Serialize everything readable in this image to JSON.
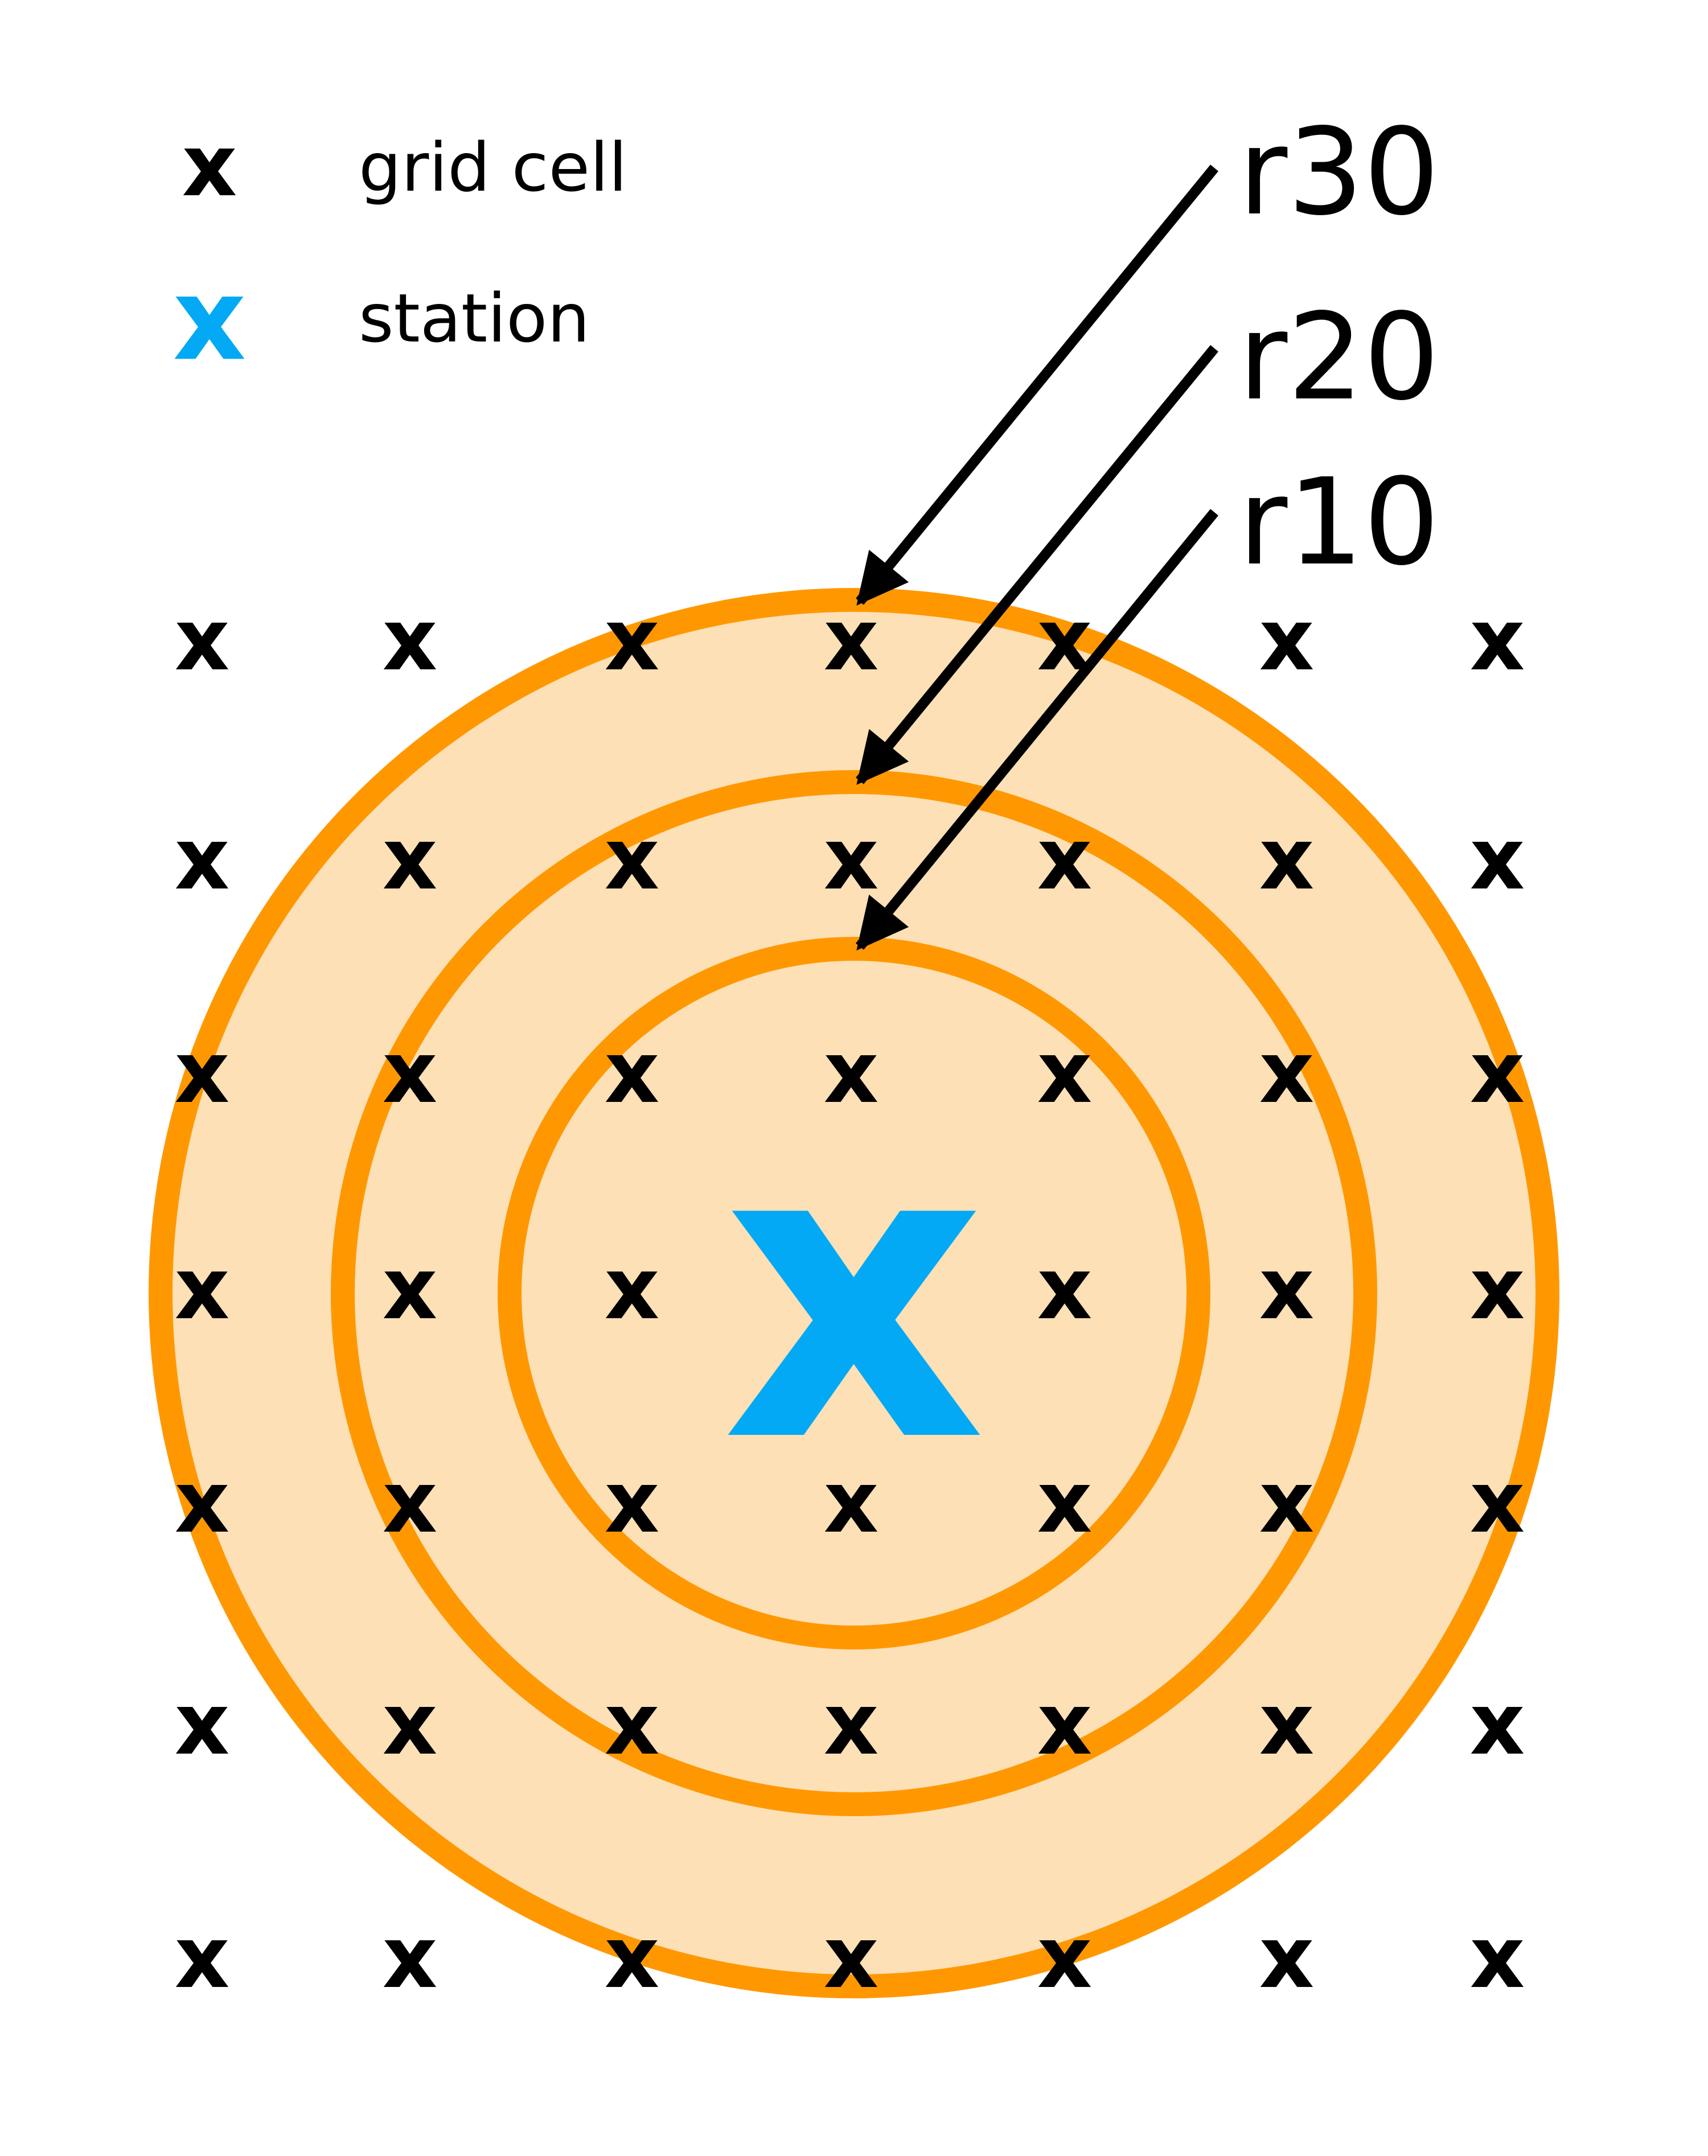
{
  "legend": [
    {
      "symbol": "x",
      "label": "grid cell",
      "color": "#000000"
    },
    {
      "symbol": "x",
      "label": "station",
      "color": "#03a9f4"
    }
  ],
  "rings": [
    {
      "label": "r30"
    },
    {
      "label": "r20"
    },
    {
      "label": "r10"
    }
  ],
  "station": {
    "symbol": "x",
    "color": "#03a9f4"
  },
  "grid": {
    "symbol": "x",
    "rows": 7,
    "cols": 7,
    "color": "#000000"
  },
  "colors": {
    "ring_stroke": "#ff9800",
    "ring_fill": "#fde0b6",
    "arrow": "#000000"
  }
}
